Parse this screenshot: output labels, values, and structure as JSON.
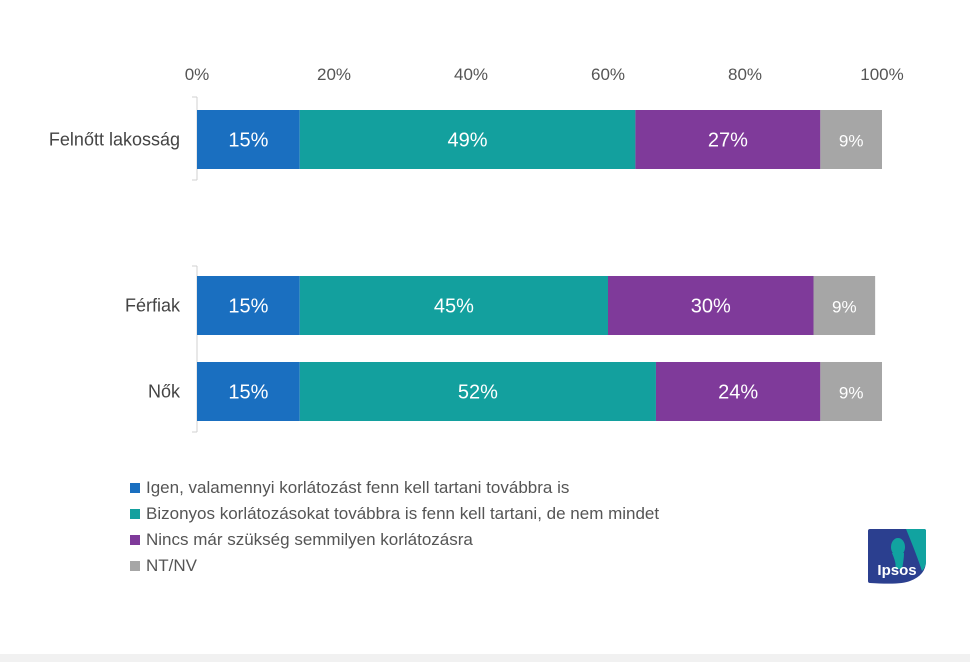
{
  "chart_data": {
    "type": "bar",
    "orientation": "horizontal",
    "stacked": true,
    "percent_scale": true,
    "categories": [
      "Felnőtt lakosság",
      "Férfiak",
      "Nők"
    ],
    "series": [
      {
        "name": "Igen, valamennyi korlátozást fenn kell tartani továbbra is",
        "color": "#1a6fc0",
        "values": [
          15,
          15,
          15
        ]
      },
      {
        "name": "Bizonyos korlátozásokat továbbra is fenn kell tartani, de nem mindet",
        "color": "#13a09e",
        "values": [
          49,
          45,
          52
        ]
      },
      {
        "name": "Nincs már szükség semmilyen korlátozásra",
        "color": "#7f3a9a",
        "values": [
          27,
          30,
          24
        ]
      },
      {
        "name": "NT/NV",
        "color": "#a6a6a6",
        "values": [
          9,
          9,
          9
        ]
      }
    ],
    "x_ticks": [
      "0%",
      "20%",
      "40%",
      "60%",
      "80%",
      "100%"
    ],
    "xlim": [
      0,
      100
    ],
    "legend_position": "bottom-left",
    "grid": false
  },
  "logo": {
    "text": "Ipsos"
  }
}
